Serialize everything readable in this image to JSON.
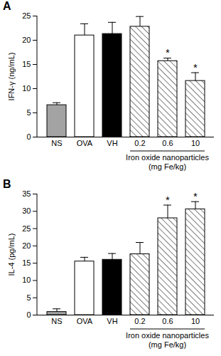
{
  "chart_data": [
    {
      "type": "bar",
      "title": "A",
      "y_label": "IFN-γ (ng/mL)",
      "categories": [
        "NS",
        "OVA",
        "VH",
        "0.2",
        "0.6",
        "10"
      ],
      "values": [
        6.6,
        21.0,
        21.3,
        22.8,
        15.7,
        11.6
      ],
      "errors": [
        0.5,
        2.4,
        2.4,
        2.1,
        0.6,
        1.7
      ],
      "colors": [
        "#a3a3a3",
        "#ffffff",
        "#000000",
        "#ffffff",
        "#ffffff",
        "#ffffff"
      ],
      "ylim": [
        0,
        25
      ],
      "yticks": [
        0,
        5,
        10,
        15,
        20,
        25
      ],
      "x_group": {
        "label": "Iron oxide nanoparticles (mg Fe/kg)",
        "categories": [
          "0.2",
          "0.6",
          "10"
        ]
      },
      "annotations": [
        {
          "category": "0.6",
          "text": "*"
        },
        {
          "category": "10",
          "text": "*"
        }
      ]
    },
    {
      "type": "bar",
      "title": "B",
      "y_label": "IL-4 (pg/mL)",
      "categories": [
        "NS",
        "OVA",
        "VH",
        "0.2",
        "0.6",
        "10"
      ],
      "values": [
        0.9,
        15.5,
        16.0,
        17.6,
        28.0,
        30.6
      ],
      "errors": [
        0.9,
        1.2,
        1.8,
        3.4,
        3.8,
        2.2
      ],
      "colors": [
        "#a3a3a3",
        "#ffffff",
        "#000000",
        "#ffffff",
        "#ffffff",
        "#ffffff"
      ],
      "ylim": [
        0,
        35
      ],
      "yticks": [
        0,
        5,
        10,
        15,
        20,
        25,
        30,
        35
      ],
      "x_group": {
        "label": "Iron oxide nanoparticles (mg Fe/kg)",
        "categories": [
          "0.2",
          "0.6",
          "10"
        ]
      },
      "annotations": [
        {
          "category": "0.6",
          "text": "*"
        },
        {
          "category": "10",
          "text": "*"
        }
      ]
    }
  ]
}
